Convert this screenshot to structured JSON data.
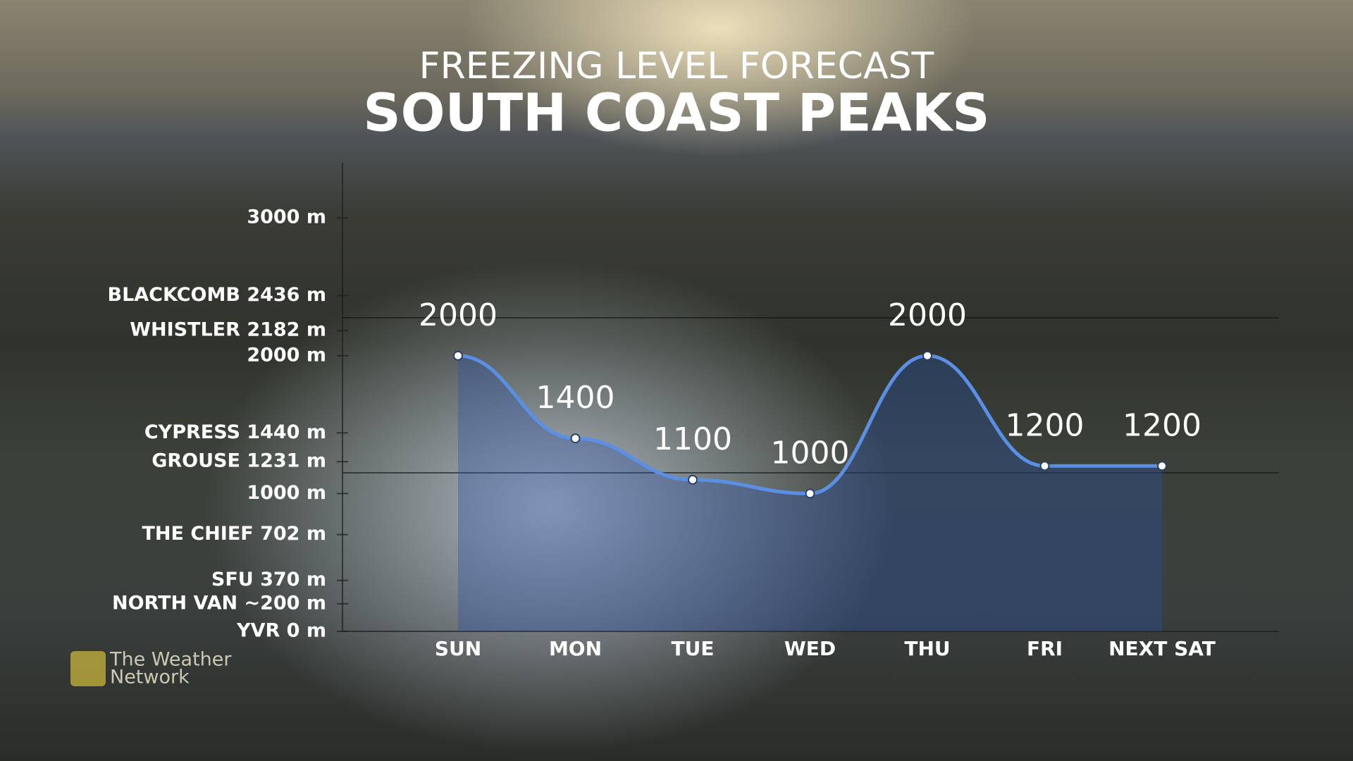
{
  "chart_data": {
    "type": "line",
    "title": "FREEZING LEVEL FORECAST",
    "subtitle": "SOUTH COAST PEAKS",
    "categories": [
      "SUN",
      "MON",
      "TUE",
      "WED",
      "THU",
      "FRI",
      "NEXT SAT"
    ],
    "values": [
      2000,
      1400,
      1100,
      1000,
      2000,
      1200,
      1200
    ],
    "color": "#5b8fe6",
    "ylim": [
      0,
      3400
    ],
    "yticks": [
      {
        "value": 3000,
        "label": "3000 m"
      },
      {
        "value": 2436,
        "label": "BLACKCOMB 2436 m"
      },
      {
        "value": 2182,
        "label": "WHISTLER 2182 m"
      },
      {
        "value": 2000,
        "label": "2000 m"
      },
      {
        "value": 1440,
        "label": "CYPRESS 1440 m"
      },
      {
        "value": 1231,
        "label": "GROUSE 1231 m"
      },
      {
        "value": 1000,
        "label": "1000 m"
      },
      {
        "value": 702,
        "label": "THE CHIEF 702 m"
      },
      {
        "value": 370,
        "label": "SFU 370 m"
      },
      {
        "value": 200,
        "label": "NORTH VAN ~200 m"
      },
      {
        "value": 0,
        "label": "YVR 0 m"
      }
    ]
  },
  "branding": {
    "name_lines": [
      "The Weather",
      "Network"
    ]
  }
}
